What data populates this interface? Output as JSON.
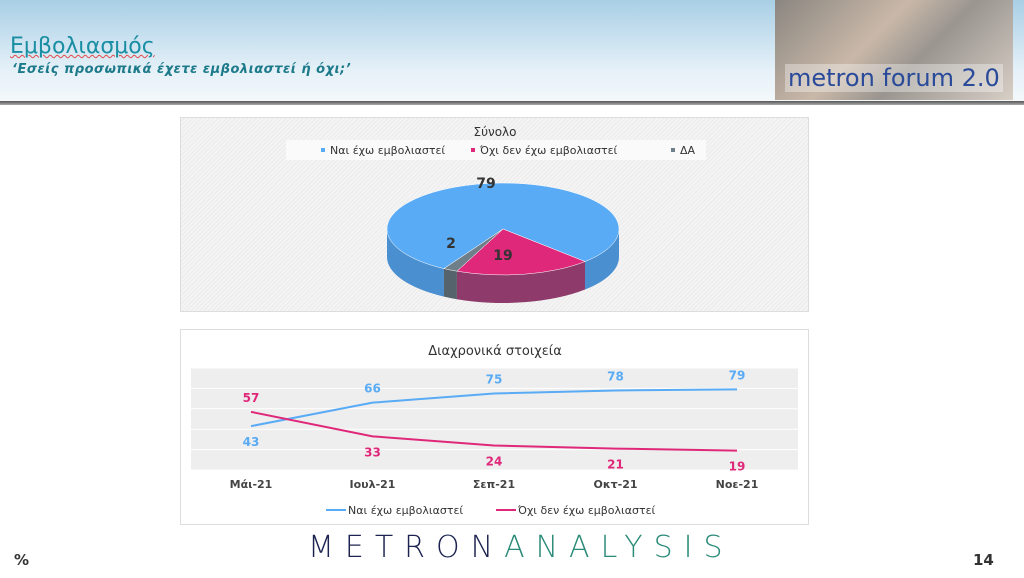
{
  "header": {
    "title": "Εμβολιασμός",
    "subtitle": "‘Εσείς προσωπικά έχετε εμβολιαστεί ή όχι;’",
    "logo_text": "metron forum 2.0"
  },
  "footer": {
    "unit": "%",
    "brand_part1": "METRON",
    "brand_part2": "ANALYSIS",
    "page": "14"
  },
  "colors": {
    "blue": "#5aabf5",
    "pink": "#e0287a",
    "gray": "#6e7f8a",
    "teal": "#1a8ea3",
    "navy": "#1c2350",
    "green": "#2a8a78"
  },
  "chart_data": [
    {
      "type": "pie",
      "title": "Σύνολο",
      "legend_position": "top",
      "categories": [
        "Ναι έχω εμβολιαστεί",
        "Όχι δεν έχω εμβολιαστεί",
        "ΔΑ"
      ],
      "values": [
        79,
        19,
        2
      ],
      "labels": [
        "79",
        "19",
        "2"
      ]
    },
    {
      "type": "line",
      "title": "Διαχρονικά στοιχεία",
      "legend_position": "bottom",
      "ylim": [
        0,
        100
      ],
      "grid": true,
      "categories": [
        "Μάι-21",
        "Ιουλ-21",
        "Σεπ-21",
        "Οκτ-21",
        "Νοε-21"
      ],
      "series": [
        {
          "name": "Ναι έχω εμβολιαστεί",
          "values": [
            43,
            66,
            75,
            78,
            79
          ],
          "labels": [
            "43",
            "66",
            "75",
            "78",
            "79"
          ]
        },
        {
          "name": "Όχι δεν έχω εμβολιαστεί",
          "values": [
            57,
            33,
            24,
            21,
            19
          ],
          "labels": [
            "57",
            "33",
            "24",
            "21",
            "19"
          ]
        }
      ]
    }
  ]
}
